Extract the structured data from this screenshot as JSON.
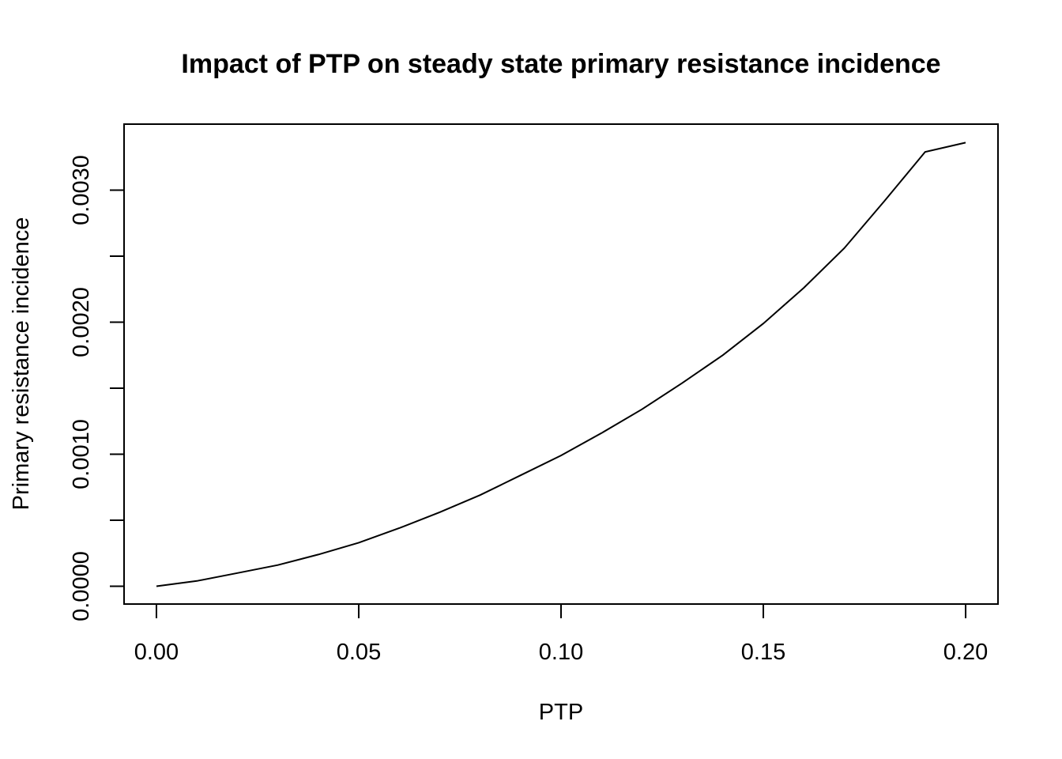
{
  "chart_data": {
    "type": "line",
    "title": "Impact of PTP on steady state primary resistance incidence",
    "xlabel": "PTP",
    "ylabel": "Primary resistance incidence",
    "xlim": [
      -0.008,
      0.208
    ],
    "ylim": [
      -0.000135,
      0.0035
    ],
    "x_ticks": [
      0.0,
      0.05,
      0.1,
      0.15,
      0.2
    ],
    "x_tick_labels": [
      "0.00",
      "0.05",
      "0.10",
      "0.15",
      "0.20"
    ],
    "y_ticks": [
      0.0,
      0.0005,
      0.001,
      0.0015,
      0.002,
      0.0025,
      0.003
    ],
    "y_tick_labels": [
      "0.0000",
      "",
      "0.0010",
      "",
      "0.0020",
      "",
      "0.0030"
    ],
    "grid": false,
    "series": [
      {
        "name": "Primary resistance incidence",
        "color": "#000000",
        "x": [
          0.0,
          0.01,
          0.02,
          0.03,
          0.04,
          0.05,
          0.06,
          0.07,
          0.08,
          0.09,
          0.1,
          0.11,
          0.12,
          0.13,
          0.14,
          0.15,
          0.16,
          0.17,
          0.18,
          0.19,
          0.2
        ],
        "y": [
          0.0,
          4e-05,
          0.0001,
          0.00016,
          0.00024,
          0.00033,
          0.00044,
          0.00056,
          0.00069,
          0.00084,
          0.00099,
          0.00116,
          0.00134,
          0.00154,
          0.00175,
          0.00199,
          0.00226,
          0.00256,
          0.00292,
          0.00329,
          0.00336
        ]
      }
    ]
  }
}
